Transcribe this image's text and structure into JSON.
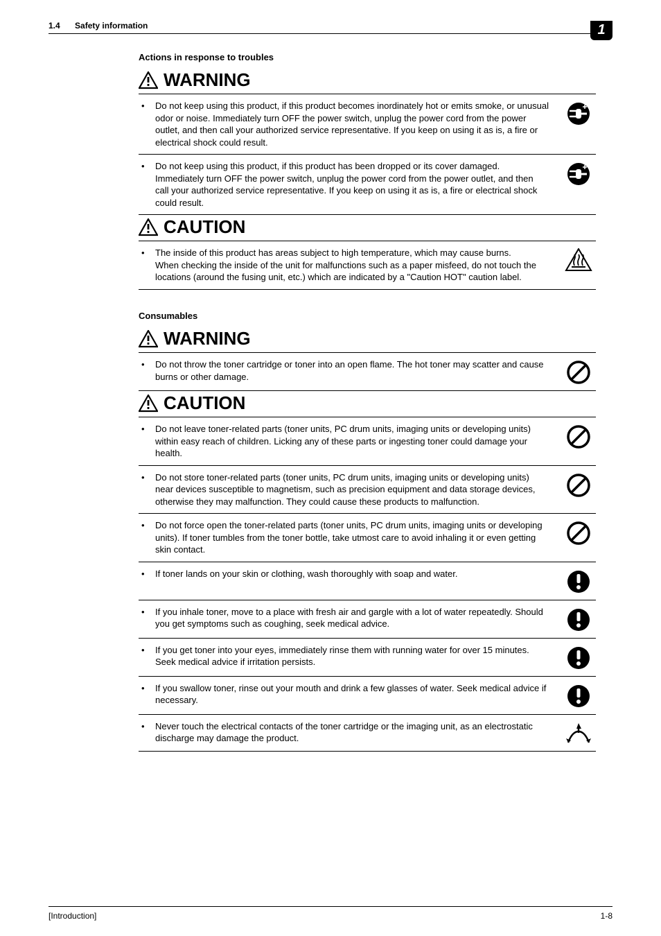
{
  "header": {
    "section_number": "1.4",
    "section_title": "Safety information",
    "chapter": "1"
  },
  "sections": [
    {
      "title": "Actions in response to troubles",
      "groups": [
        {
          "banner": "WARNING",
          "rows": [
            {
              "icon": "unplug",
              "text": "Do not keep using this product, if this product becomes inordinately hot or emits smoke, or unusual odor or noise. Immediately turn OFF the power switch, unplug the power cord from the power outlet, and then call your authorized service representative. If you keep on using it as is, a fire or electrical shock could result."
            },
            {
              "icon": "unplug",
              "text": "Do not keep using this product, if this product has been dropped or its cover damaged. Immediately turn OFF the power switch, unplug the power cord from the power outlet, and then call your authorized service representative. If you keep on using it as is, a fire or electrical shock could result."
            }
          ]
        },
        {
          "banner": "CAUTION",
          "rows": [
            {
              "icon": "hot",
              "text": "The inside of this product has areas subject to high temperature, which may cause burns.\nWhen checking the inside of the unit for malfunctions such as a paper misfeed, do not touch the locations (around the fusing unit, etc.) which are indicated by a \"Caution HOT\" caution label."
            }
          ]
        }
      ]
    },
    {
      "title": "Consumables",
      "groups": [
        {
          "banner": "WARNING",
          "rows": [
            {
              "icon": "prohibit",
              "text": "Do not throw the toner cartridge or toner into an open flame. The hot toner may scatter and cause burns or other damage."
            }
          ]
        },
        {
          "banner": "CAUTION",
          "rows": [
            {
              "icon": "prohibit",
              "text": "Do not leave toner-related parts (toner units, PC drum units, imaging units or developing units) within easy reach of children. Licking any of these parts or ingesting toner could damage your health."
            },
            {
              "icon": "prohibit",
              "text": "Do not store toner-related parts (toner units, PC drum units, imaging units or developing units) near devices susceptible to magnetism, such as precision equipment and data storage devices, otherwise they may malfunction. They could cause these products to malfunction."
            },
            {
              "icon": "prohibit",
              "text": "Do not force open the toner-related parts (toner units, PC drum units, imaging units or developing units). If toner tumbles from the toner bottle, take utmost care to avoid inhaling it or even getting skin contact."
            },
            {
              "icon": "mandatory",
              "text": "If toner lands on your skin or clothing, wash thoroughly with soap and water."
            },
            {
              "icon": "mandatory",
              "text": "If you inhale toner, move to a place with fresh air and gargle with a lot of water repeatedly. Should you get symptoms such as coughing, seek medical advice."
            },
            {
              "icon": "mandatory",
              "text": "If you get toner into your eyes, immediately rinse them with running water for over 15 minutes. Seek medical advice if irritation persists."
            },
            {
              "icon": "mandatory",
              "text": "If you swallow toner, rinse out your mouth and drink a few glasses of water. Seek medical advice if necessary."
            },
            {
              "icon": "esd",
              "text": "Never touch the electrical contacts of the toner cartridge or the imaging unit, as an electrostatic discharge may damage the product."
            }
          ]
        }
      ]
    }
  ],
  "footer": {
    "left": "[Introduction]",
    "right": "1-8"
  },
  "colors": {
    "text": "#000000",
    "background": "#ffffff",
    "rule": "#000000"
  }
}
